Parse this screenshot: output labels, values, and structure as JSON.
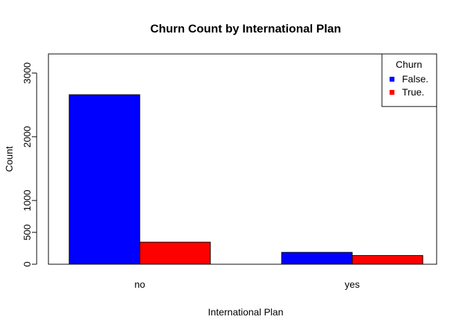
{
  "chart_data": {
    "type": "bar",
    "title": "Churn Count by International Plan",
    "xlabel": "International Plan",
    "ylabel": "Count",
    "categories": [
      "no",
      "yes"
    ],
    "series": [
      {
        "name": "False.",
        "values": [
          2660,
          186
        ],
        "color": "#0000ff"
      },
      {
        "name": "True.",
        "values": [
          346,
          137
        ],
        "color": "#ff0000"
      }
    ],
    "ylim": [
      0,
      3300
    ],
    "yticks": [
      0,
      500,
      1000,
      2000,
      3000
    ],
    "legend": {
      "title": "Churn",
      "position": "top-right"
    },
    "grid": false
  }
}
